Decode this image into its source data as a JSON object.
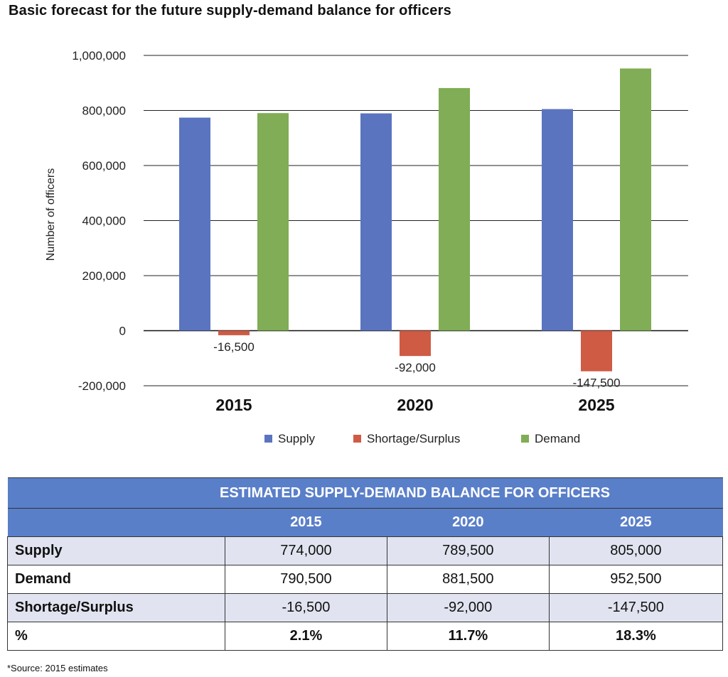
{
  "title": "Basic forecast for the future supply-demand balance for officers",
  "chart_data": {
    "type": "bar",
    "title": "Basic forecast for the future supply-demand balance for officers",
    "categories": [
      "2015",
      "2020",
      "2025"
    ],
    "series": [
      {
        "name": "Supply",
        "values": [
          774000,
          789500,
          805000
        ],
        "color": "#5b74c0"
      },
      {
        "name": "Shortage/Surplus",
        "values": [
          -16500,
          -92000,
          -147500
        ],
        "color": "#cf5b45",
        "data_labels": [
          "-16,500",
          "-92,000",
          "-147,500"
        ]
      },
      {
        "name": "Demand",
        "values": [
          790500,
          881500,
          952500
        ],
        "color": "#80ad55"
      }
    ],
    "xlabel": "",
    "ylabel": "Number of officers",
    "ylim": [
      -200000,
      1000000
    ],
    "yticks": [
      1000000,
      800000,
      600000,
      400000,
      200000,
      0,
      -200000
    ],
    "ytick_labels": [
      "1,000,000",
      "800,000",
      "600,000",
      "400,000",
      "200,000",
      "0",
      "-200,000"
    ],
    "grid": true,
    "legend": "bottom"
  },
  "table": {
    "title": "ESTIMATED SUPPLY-DEMAND BALANCE FOR OFFICERS",
    "years": [
      "2015",
      "2020",
      "2025"
    ],
    "rows": [
      {
        "label": "Supply",
        "values": [
          "774,000",
          "789,500",
          "805,000"
        ]
      },
      {
        "label": "Demand",
        "values": [
          "790,500",
          "881,500",
          "952,500"
        ]
      },
      {
        "label": "Shortage/Surplus",
        "values": [
          "-16,500",
          "-92,000",
          "-147,500"
        ]
      },
      {
        "label": "%",
        "values": [
          "2.1%",
          "11.7%",
          "18.3%"
        ]
      }
    ],
    "header_color": "#5a7fc9",
    "shade_color": "#e1e4f0"
  },
  "source_note": "*Source: 2015 estimates"
}
